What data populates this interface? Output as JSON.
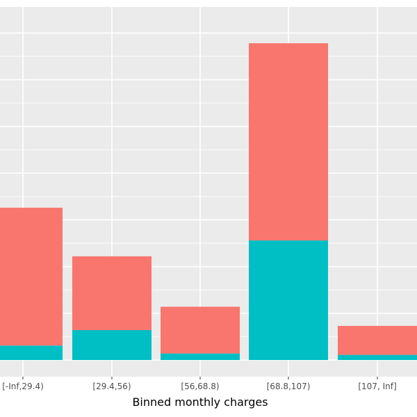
{
  "chart_data": {
    "type": "bar",
    "stacked": true,
    "title": "",
    "xlabel": "Binned monthly charges",
    "ylabel": "",
    "categories": [
      "[-Inf,29.4)",
      "[29.4,56)",
      "[56,68.8)",
      "[68.8,107)",
      "[107, Inf]"
    ],
    "series": [
      {
        "name": "",
        "color": "#00BFC4",
        "values": [
          155,
          320,
          70,
          1280,
          55
        ]
      },
      {
        "name": "",
        "color": "#F8766D",
        "values": [
          1475,
          790,
          500,
          2110,
          310
        ]
      }
    ],
    "ylim": [
      0,
      3600
    ],
    "grid": true,
    "background": "#EBEBEB",
    "gridline_color": "#FFFFFF"
  }
}
